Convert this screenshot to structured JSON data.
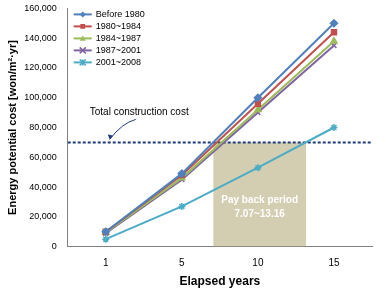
{
  "chart_data": {
    "type": "line",
    "categories": [
      "1",
      "5",
      "10",
      "15"
    ],
    "x_label": "Elapsed years",
    "y_label": "Energy potential cost [won/m²·yr]",
    "series": [
      {
        "name": "Before 1980",
        "color": "#4f81bd",
        "marker": "diamond",
        "values": [
          10000,
          49000,
          100000,
          150000
        ]
      },
      {
        "name": "1980~1984",
        "color": "#c0504d",
        "marker": "square",
        "values": [
          10000,
          48000,
          96000,
          144000
        ]
      },
      {
        "name": "1984~1987",
        "color": "#9bbb59",
        "marker": "triangle",
        "values": [
          9500,
          46000,
          92000,
          138000
        ]
      },
      {
        "name": "1987~2001",
        "color": "#8064a2",
        "marker": "x",
        "values": [
          9000,
          45000,
          90000,
          135000
        ]
      },
      {
        "name": "2001~2008",
        "color": "#4bacc6",
        "marker": "star",
        "values": [
          5000,
          27000,
          53000,
          80000
        ]
      }
    ],
    "ylim": [
      0,
      160000
    ],
    "yticks": [
      0,
      {
        "value": 20000,
        "label": "20,000"
      },
      {
        "value": 40000,
        "label": "40,000"
      },
      {
        "value": 60000,
        "label": "60,000"
      },
      {
        "value": 80000,
        "label": "80,000"
      },
      {
        "value": 100000,
        "label": "100,000"
      },
      {
        "value": 120000,
        "label": "120,000"
      },
      {
        "value": 140000,
        "label": "140,000"
      },
      {
        "value": 160000,
        "label": "160,000"
      }
    ],
    "grid": false,
    "legend": "upper left",
    "annotations": [
      {
        "type": "hline",
        "text": "Total construction cost",
        "y": 70000,
        "color": "#1f3a7a",
        "line_style": "dashed"
      },
      {
        "type": "span",
        "text": "Pay back period",
        "range_label": "7.07~13.16",
        "x": [
          7.07,
          13.16
        ],
        "y": [
          0,
          70000
        ],
        "color": "#c4bd97"
      }
    ]
  }
}
